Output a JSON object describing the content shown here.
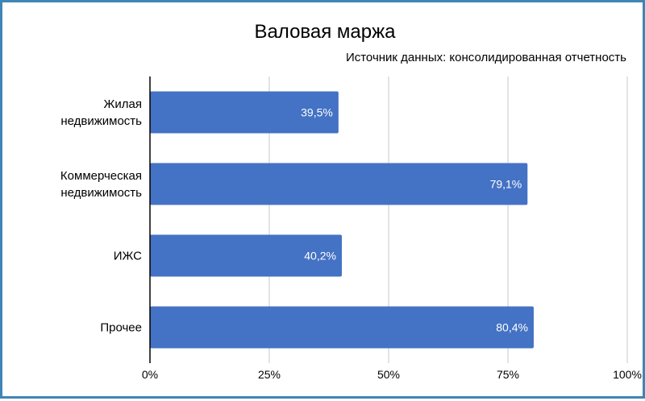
{
  "chart_data": {
    "type": "bar",
    "orientation": "horizontal",
    "title": "Валовая маржа",
    "subtitle": "Источник данных: консолидированная отчетность",
    "categories": [
      [
        "Жилая",
        "недвижимость"
      ],
      [
        "Коммерческая",
        "недвижимость"
      ],
      [
        "ИЖС"
      ],
      [
        "Прочее"
      ]
    ],
    "values": [
      39.5,
      79.1,
      40.2,
      80.4
    ],
    "data_labels": [
      "39,5%",
      "79,1%",
      "40,2%",
      "80,4%"
    ],
    "xlim": [
      0,
      100
    ],
    "x_ticks": [
      0,
      25,
      50,
      75,
      100
    ],
    "x_tick_labels": [
      "0%",
      "25%",
      "50%",
      "75%",
      "100%"
    ],
    "grid": "vertical",
    "legend": "none",
    "bar_color": "#4472c4",
    "grid_color": "#c8c8c8"
  }
}
